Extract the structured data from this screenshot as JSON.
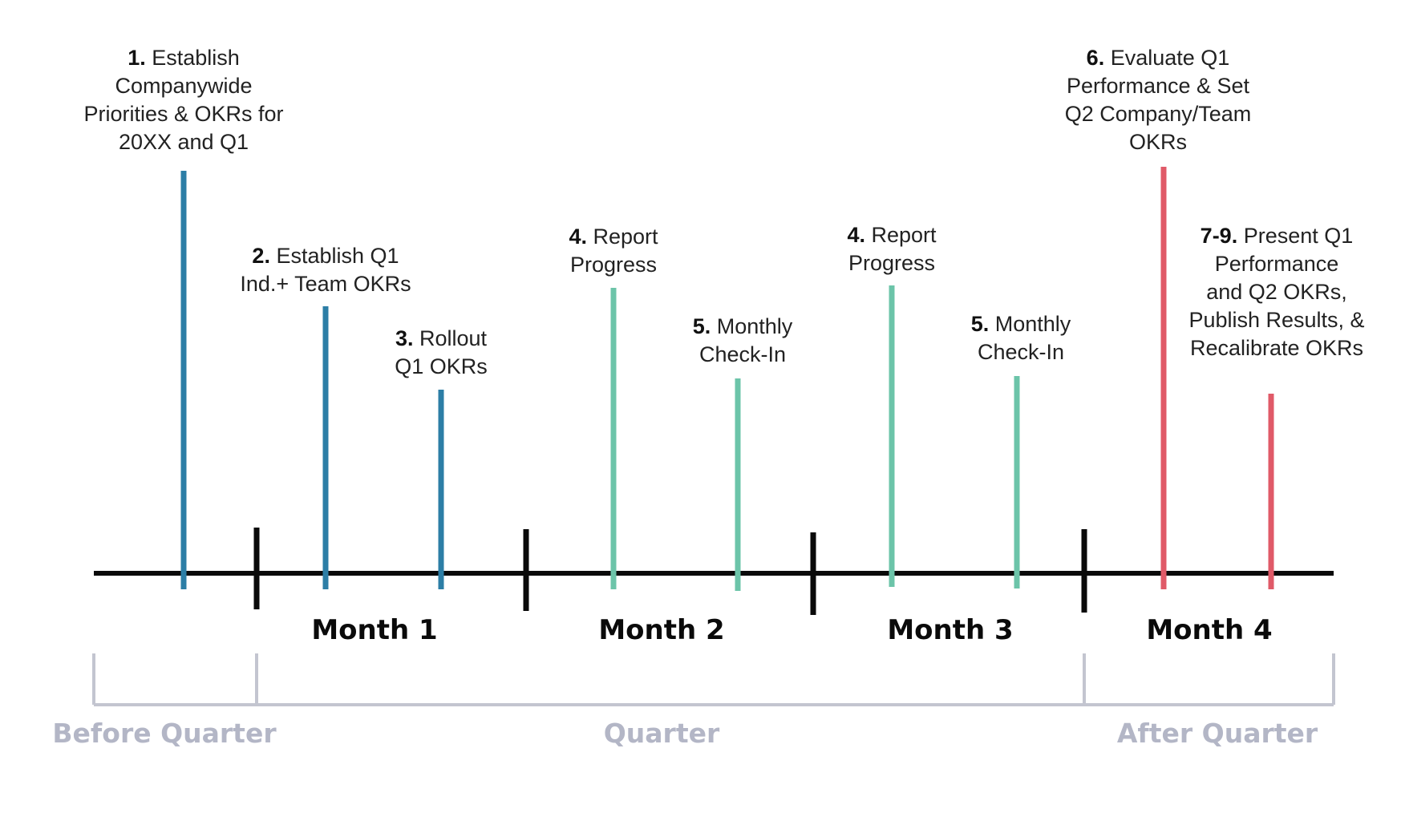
{
  "colors": {
    "blue": "#2c7ea6",
    "teal": "#6cc4a9",
    "red": "#e05a68",
    "axis": "#0a0a0a",
    "bracket": "#c3c5d0",
    "period_text": "#b3b6c6"
  },
  "milestones": [
    {
      "num": "1.",
      "lines": [
        "Establish",
        "Companywide",
        "Priorities & OKRs for",
        "20XX and Q1"
      ],
      "color": "blue"
    },
    {
      "num": "2.",
      "lines": [
        "Establish Q1",
        "Ind.+ Team OKRs"
      ],
      "color": "blue"
    },
    {
      "num": "3.",
      "lines": [
        "Rollout",
        "Q1 OKRs"
      ],
      "color": "blue"
    },
    {
      "num": "4.",
      "lines": [
        "Report",
        "Progress"
      ],
      "color": "teal"
    },
    {
      "num": "5.",
      "lines": [
        "Monthly",
        "Check-In"
      ],
      "color": "teal"
    },
    {
      "num": "4.",
      "lines": [
        "Report",
        "Progress"
      ],
      "color": "teal"
    },
    {
      "num": "5.",
      "lines": [
        "Monthly",
        "Check-In"
      ],
      "color": "teal"
    },
    {
      "num": "6.",
      "lines": [
        "Evaluate Q1",
        "Performance & Set",
        "Q2 Company/Team",
        "OKRs"
      ],
      "color": "red"
    },
    {
      "num": "7-9.",
      "lines": [
        "Present Q1",
        "Performance",
        "and Q2 OKRs,",
        "Publish Results, &",
        "Recalibrate OKRs"
      ],
      "color": "red"
    }
  ],
  "months": [
    "Month 1",
    "Month 2",
    "Month 3",
    "Month 4"
  ],
  "periods": [
    "Before Quarter",
    "Quarter",
    "After Quarter"
  ]
}
